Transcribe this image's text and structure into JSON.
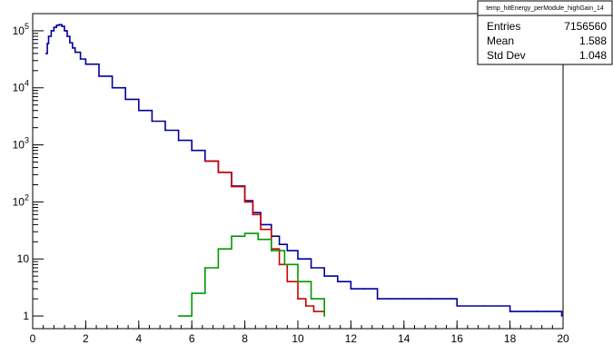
{
  "chart_data": {
    "type": "line",
    "title": "",
    "xlabel": "",
    "ylabel": "",
    "xlim": [
      0,
      20
    ],
    "ylim": [
      0.6,
      200000
    ],
    "y_scale": "log",
    "grid": false,
    "x_ticks": [
      "0",
      "2",
      "4",
      "6",
      "8",
      "10",
      "12",
      "14",
      "16",
      "18",
      "20"
    ],
    "y_ticks": [
      {
        "value": 1,
        "label": "1"
      },
      {
        "value": 10,
        "label": "10"
      },
      {
        "value": 100,
        "label": "10",
        "exp": "2"
      },
      {
        "value": 1000,
        "label": "10",
        "exp": "3"
      },
      {
        "value": 10000,
        "label": "10",
        "exp": "4"
      },
      {
        "value": 100000,
        "label": "10",
        "exp": "5"
      }
    ],
    "series": [
      {
        "color": "#000099",
        "x": [
          0.5,
          0.55,
          0.6,
          0.7,
          0.8,
          0.9,
          1.0,
          1.1,
          1.2,
          1.3,
          1.4,
          1.5,
          1.6,
          1.8,
          2.0,
          2.5,
          3.0,
          3.5,
          4.0,
          4.5,
          5.0,
          5.5,
          6.0,
          6.5,
          7.0,
          7.5,
          8.0,
          8.3,
          8.6,
          9.0,
          9.3,
          9.6,
          10.0,
          10.5,
          11.0,
          11.5,
          12.0,
          12.5,
          13.0,
          13.5,
          14.0,
          15.0,
          16.0,
          17.0,
          18.0,
          19.0,
          19.95
        ],
        "values": [
          40000,
          60000,
          80000,
          100000,
          115000,
          125000,
          128000,
          120000,
          100000,
          80000,
          62000,
          50000,
          42000,
          32000,
          26000,
          16000,
          10000,
          6300,
          4000,
          2600,
          1800,
          1200,
          800,
          520,
          330,
          190,
          105,
          65,
          40,
          25,
          18,
          14,
          10,
          7,
          5,
          4,
          3,
          3,
          2,
          2,
          2,
          2,
          1.5,
          1.5,
          1.2,
          1.2,
          1
        ]
      },
      {
        "color": "#cc0000",
        "x": [
          6.5,
          7.0,
          7.5,
          8.0,
          8.3,
          8.6,
          9.0,
          9.3,
          9.6,
          10.0,
          10.3,
          10.6,
          11.0
        ],
        "values": [
          520,
          330,
          185,
          100,
          60,
          33,
          15,
          8,
          4,
          2,
          1.5,
          1.2,
          1
        ]
      },
      {
        "color": "#009900",
        "x": [
          5.5,
          6.0,
          6.5,
          7.0,
          7.5,
          8.0,
          8.5,
          9.0,
          9.5,
          10.0,
          10.5,
          11.0
        ],
        "values": [
          1,
          2.5,
          7,
          15,
          25,
          28,
          22,
          14,
          8,
          4,
          2,
          1
        ]
      }
    ]
  },
  "stats_box": {
    "title": "temp_hitEnergy_perModule_highGain_14",
    "rows": [
      {
        "label": "Entries",
        "value": "7156560"
      },
      {
        "label": "Mean",
        "value": "1.588"
      },
      {
        "label": "Std Dev",
        "value": "1.048"
      }
    ]
  }
}
